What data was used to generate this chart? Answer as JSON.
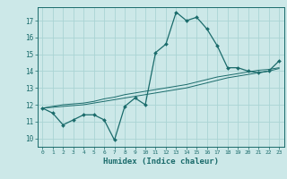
{
  "xlabel": "Humidex (Indice chaleur)",
  "bg_color": "#cce8e8",
  "grid_color": "#aad4d4",
  "line_color": "#1a6b6b",
  "x_data": [
    0,
    1,
    2,
    3,
    4,
    5,
    6,
    7,
    8,
    9,
    10,
    11,
    12,
    13,
    14,
    15,
    16,
    17,
    18,
    19,
    20,
    21,
    22,
    23
  ],
  "y_main": [
    11.8,
    11.5,
    10.8,
    11.1,
    11.4,
    11.4,
    11.1,
    9.9,
    11.9,
    12.4,
    12.0,
    15.1,
    15.6,
    17.5,
    17.0,
    17.2,
    16.5,
    15.5,
    14.2,
    14.2,
    14.0,
    13.9,
    14.0,
    14.6
  ],
  "y_line1": [
    11.8,
    11.85,
    11.9,
    11.95,
    12.0,
    12.1,
    12.2,
    12.3,
    12.4,
    12.5,
    12.6,
    12.7,
    12.8,
    12.9,
    13.0,
    13.15,
    13.3,
    13.45,
    13.6,
    13.7,
    13.8,
    13.9,
    14.0,
    14.15
  ],
  "y_line2": [
    11.8,
    11.9,
    12.0,
    12.05,
    12.1,
    12.2,
    12.35,
    12.45,
    12.6,
    12.7,
    12.8,
    12.9,
    13.0,
    13.1,
    13.2,
    13.35,
    13.5,
    13.65,
    13.75,
    13.85,
    13.95,
    14.05,
    14.1,
    14.2
  ],
  "xlim": [
    -0.5,
    23.5
  ],
  "ylim": [
    9.5,
    17.8
  ],
  "yticks": [
    10,
    11,
    12,
    13,
    14,
    15,
    16,
    17
  ],
  "xticks": [
    0,
    1,
    2,
    3,
    4,
    5,
    6,
    7,
    8,
    9,
    10,
    11,
    12,
    13,
    14,
    15,
    16,
    17,
    18,
    19,
    20,
    21,
    22,
    23
  ]
}
